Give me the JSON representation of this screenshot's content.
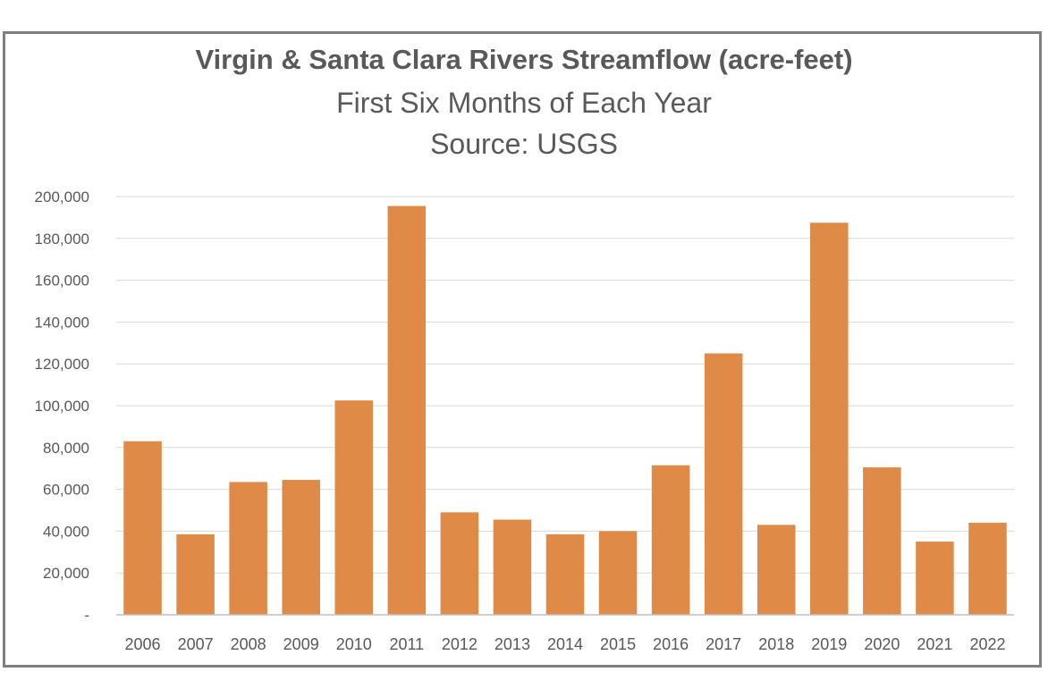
{
  "chart_data": {
    "type": "bar",
    "title": "Virgin & Santa Clara Rivers Streamflow (acre-feet)",
    "subtitle": "First Six Months of Each Year",
    "source": "Source: USGS",
    "categories": [
      "2006",
      "2007",
      "2008",
      "2009",
      "2010",
      "2011",
      "2012",
      "2013",
      "2014",
      "2015",
      "2016",
      "2017",
      "2018",
      "2019",
      "2020",
      "2021",
      "2022"
    ],
    "series": [
      {
        "values": [
          83000,
          38500,
          63500,
          64500,
          102500,
          195500,
          49000,
          45500,
          38500,
          40000,
          71500,
          125000,
          43000,
          187500,
          70500,
          35000,
          44000
        ],
        "color": "#e08a47"
      }
    ],
    "ylim": [
      0,
      200000
    ],
    "yticks": [
      0,
      20000,
      40000,
      60000,
      80000,
      100000,
      120000,
      140000,
      160000,
      180000,
      200000
    ],
    "ytick_labels": [
      "-",
      "20,000",
      "40,000",
      "60,000",
      "80,000",
      "100,000",
      "120,000",
      "140,000",
      "160,000",
      "180,000",
      "200,000"
    ],
    "grid": true,
    "colors": {
      "grid": "#d9d9d9",
      "axis": "#bfbfbf",
      "text": "#595959",
      "border": "#7f7f7f"
    }
  }
}
